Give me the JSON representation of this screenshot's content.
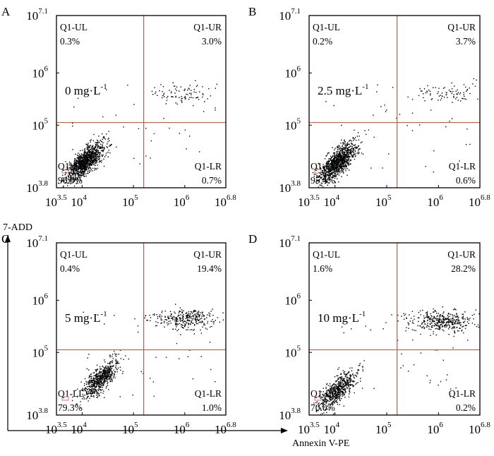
{
  "figure": {
    "y_axis_title": "7-ADD",
    "x_axis_title": "Annexin V-PE"
  },
  "colors": {
    "gate": "#b5604d",
    "frame": "#000000",
    "dots": "#000000"
  },
  "chart_data": [
    {
      "type": "scatter",
      "panel": "A",
      "treatment": "0 mg·L",
      "treatment_exponent": "-1",
      "x_scale": "log",
      "y_scale": "log",
      "xlim_exp": [
        3.5,
        6.8
      ],
      "ylim_exp": [
        3.8,
        7.1
      ],
      "x_tick_exponents": [
        "3.5",
        "4",
        "5",
        "6",
        "6.8"
      ],
      "y_tick_exponents": [
        "3.8",
        "5",
        "6",
        "7.1"
      ],
      "gate": {
        "x_exp": 5.2,
        "y_exp": 5.05
      },
      "quadrants": [
        {
          "name": "Q1-UL",
          "percent": "0.3%"
        },
        {
          "name": "Q1-UR",
          "percent": "3.0%"
        },
        {
          "name": "Q1-LL",
          "percent": "96.0%"
        },
        {
          "name": "Q1-LR",
          "percent": "0.7%"
        }
      ],
      "cluster": {
        "cx": 4.05,
        "cy": 4.3,
        "n": 1100
      },
      "upper_cloud": {
        "cx": 6.0,
        "cy": 5.6,
        "n": 85
      }
    },
    {
      "type": "scatter",
      "panel": "B",
      "treatment": "2.5 mg·L",
      "treatment_exponent": "-1",
      "x_scale": "log",
      "y_scale": "log",
      "xlim_exp": [
        3.5,
        6.8
      ],
      "ylim_exp": [
        3.8,
        7.1
      ],
      "x_tick_exponents": [
        "3.5",
        "4",
        "5",
        "6",
        "6.8"
      ],
      "y_tick_exponents": [
        "3.8",
        "5",
        "6",
        "7.1"
      ],
      "gate": {
        "x_exp": 5.2,
        "y_exp": 5.05
      },
      "quadrants": [
        {
          "name": "Q1-UL",
          "percent": "0.2%"
        },
        {
          "name": "Q1-UR",
          "percent": "3.7%"
        },
        {
          "name": "Q1-LL",
          "percent": "95.4%"
        },
        {
          "name": "Q1-LR",
          "percent": "0.6%"
        }
      ],
      "cluster": {
        "cx": 4.05,
        "cy": 4.3,
        "n": 1100
      },
      "upper_cloud": {
        "cx": 6.2,
        "cy": 5.6,
        "n": 80
      }
    },
    {
      "type": "scatter",
      "panel": "C",
      "treatment": "5 mg·L",
      "treatment_exponent": "-1",
      "x_scale": "log",
      "y_scale": "log",
      "xlim_exp": [
        3.5,
        6.8
      ],
      "ylim_exp": [
        3.8,
        7.1
      ],
      "x_tick_exponents": [
        "3.5",
        "4",
        "5",
        "6",
        "6.8"
      ],
      "y_tick_exponents": [
        "3.8",
        "5",
        "6",
        "7.1"
      ],
      "gate": {
        "x_exp": 5.2,
        "y_exp": 5.05
      },
      "quadrants": [
        {
          "name": "Q1-UL",
          "percent": "0.4%"
        },
        {
          "name": "Q1-UR",
          "percent": "19.4%"
        },
        {
          "name": "Q1-LL",
          "percent": "79.3%"
        },
        {
          "name": "Q1-LR",
          "percent": "1.0%"
        }
      ],
      "cluster": {
        "cx": 4.35,
        "cy": 4.5,
        "n": 650
      },
      "upper_cloud": {
        "cx": 6.0,
        "cy": 5.65,
        "n": 300
      }
    },
    {
      "type": "scatter",
      "panel": "D",
      "treatment": "10 mg·L",
      "treatment_exponent": "-1",
      "x_scale": "log",
      "y_scale": "log",
      "xlim_exp": [
        3.5,
        6.8
      ],
      "ylim_exp": [
        3.8,
        7.1
      ],
      "x_tick_exponents": [
        "3.5",
        "4",
        "5",
        "6",
        "6.8"
      ],
      "y_tick_exponents": [
        "3.8",
        "5",
        "6",
        "7.1"
      ],
      "gate": {
        "x_exp": 5.2,
        "y_exp": 5.05
      },
      "quadrants": [
        {
          "name": "Q1-UL",
          "percent": "1.6%"
        },
        {
          "name": "Q1-UR",
          "percent": "28.2%"
        },
        {
          "name": "Q1-LL",
          "percent": "70.0%"
        },
        {
          "name": "Q1-LR",
          "percent": "0.2%"
        }
      ],
      "cluster": {
        "cx": 4.05,
        "cy": 4.3,
        "n": 600
      },
      "upper_cloud": {
        "cx": 6.05,
        "cy": 5.6,
        "n": 380
      }
    }
  ]
}
